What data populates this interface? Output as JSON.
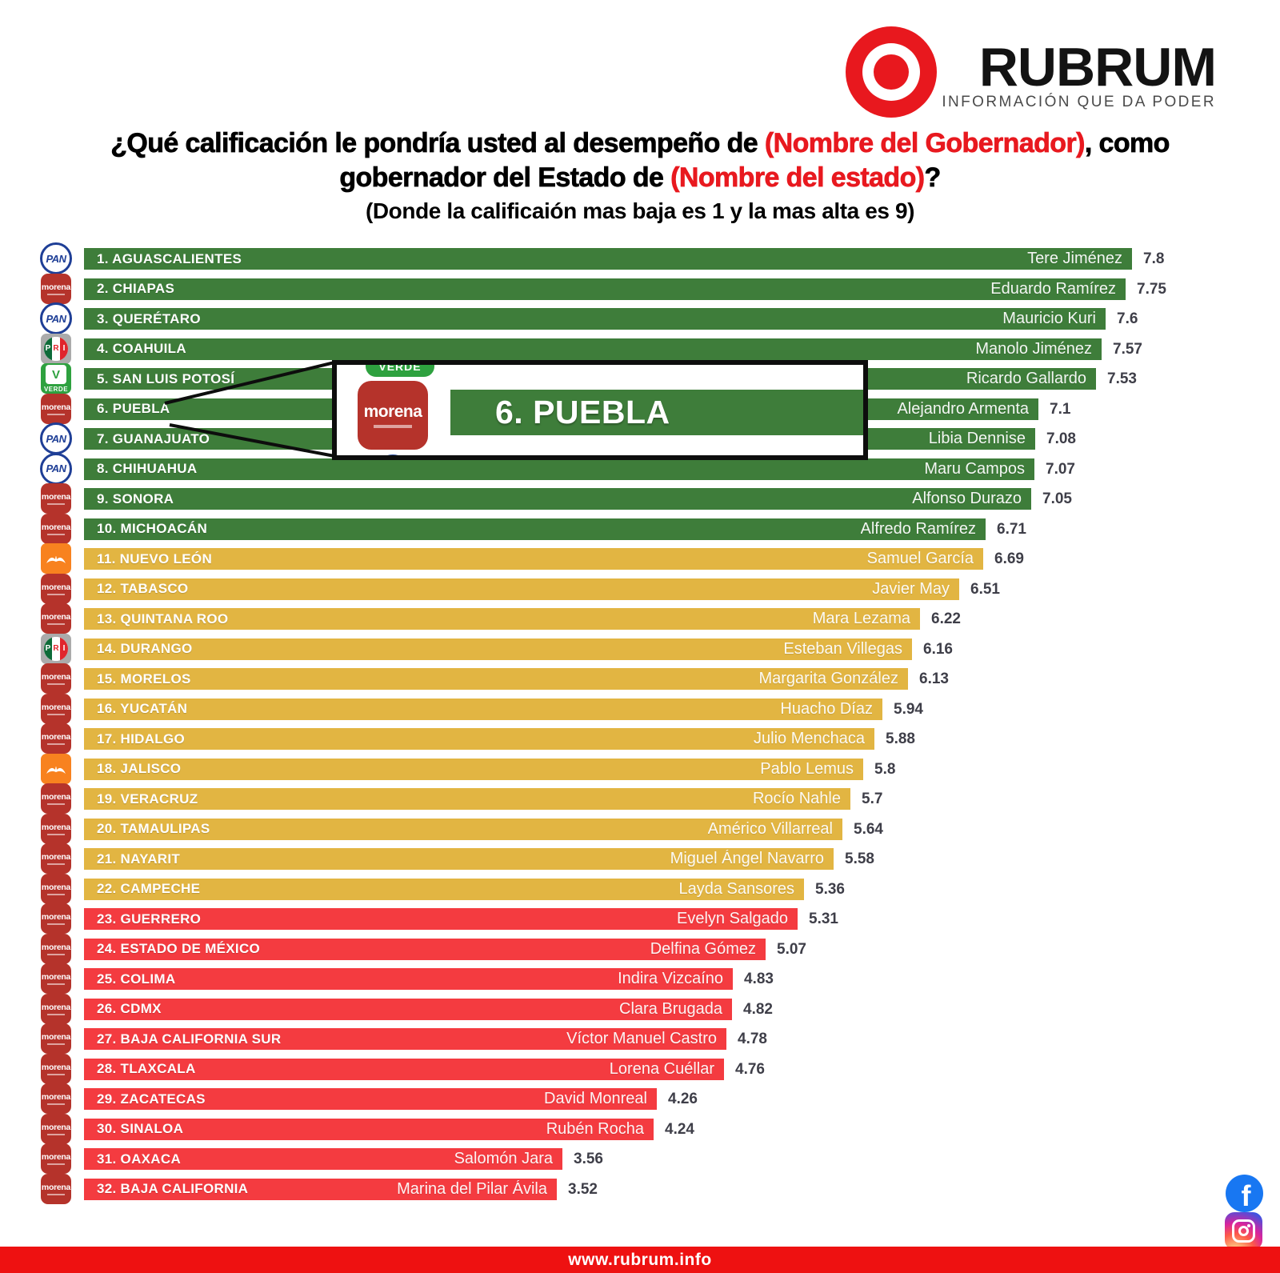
{
  "header": {
    "brand": "RUBRUM",
    "tagline": "INFORMACIÓN QUE DA PODER"
  },
  "title": {
    "line1": [
      {
        "text": "¿Qué calificación le pondría usted al desempeño de ",
        "color": "black"
      },
      {
        "text": "(Nombre del Gobernador)",
        "color": "red"
      },
      {
        "text": ", como",
        "color": "black"
      }
    ],
    "line2": [
      {
        "text": "gobernador del Estado de ",
        "color": "black"
      },
      {
        "text": "(Nombre del estado)",
        "color": "red"
      },
      {
        "text": "?",
        "color": "black"
      }
    ],
    "line3": "(Donde la calificaión mas baja es 1 y la mas alta es 9)"
  },
  "parties": {
    "PAN": "PAN",
    "morena": "morena",
    "PRI": "PRI",
    "VERDE": "VERDE",
    "MC": "MC"
  },
  "colors": {
    "tiers": {
      "green": "#3e7d3a",
      "yellow": "#e2b542",
      "red": "#f43b40"
    },
    "brand_red": "#e8181e",
    "footer_red": "#ee1111",
    "title_red": "#e8191f",
    "score_text": "#3e3e48",
    "party": {
      "PAN": "#1e3e96",
      "morena": "#b5332b",
      "PRI": "#0d6b38",
      "VERDE": "#2ea13f",
      "MC": "#f8821f"
    }
  },
  "inset": {
    "label": "6. PUEBLA",
    "party": "morena"
  },
  "footer": {
    "url": "www.rubrum.info"
  },
  "icons": {
    "facebook": "f"
  },
  "chart_data": {
    "type": "bar",
    "orientation": "horizontal",
    "title": "¿Qué calificación le pondría usted al desempeño de (Nombre del Gobernador), como gobernador del Estado de (Nombre del estado)?",
    "subtitle": "(Donde la calificaión mas baja es 1 y la mas alta es 9)",
    "value_range": [
      1,
      9
    ],
    "legend_position": "none",
    "grid": false,
    "rows": [
      {
        "rank": 1,
        "state": "AGUASCALIENTES",
        "governor": "Tere Jiménez",
        "score": 7.8,
        "party": "PAN",
        "tier": "green"
      },
      {
        "rank": 2,
        "state": "CHIAPAS",
        "governor": "Eduardo Ramírez",
        "score": 7.75,
        "party": "morena",
        "tier": "green"
      },
      {
        "rank": 3,
        "state": "QUERÉTARO",
        "governor": "Mauricio Kuri",
        "score": 7.6,
        "party": "PAN",
        "tier": "green"
      },
      {
        "rank": 4,
        "state": "COAHUILA",
        "governor": "Manolo Jiménez",
        "score": 7.57,
        "party": "PRI",
        "tier": "green"
      },
      {
        "rank": 5,
        "state": "SAN LUIS POTOSÍ",
        "governor": "Ricardo Gallardo",
        "score": 7.53,
        "party": "VERDE",
        "tier": "green"
      },
      {
        "rank": 6,
        "state": "PUEBLA",
        "governor": "Alejandro Armenta",
        "score": 7.1,
        "party": "morena",
        "tier": "green"
      },
      {
        "rank": 7,
        "state": "GUANAJUATO",
        "governor": "Libia Dennise",
        "score": 7.08,
        "party": "PAN",
        "tier": "green"
      },
      {
        "rank": 8,
        "state": "CHIHUAHUA",
        "governor": "Maru Campos",
        "score": 7.07,
        "party": "PAN",
        "tier": "green"
      },
      {
        "rank": 9,
        "state": "SONORA",
        "governor": "Alfonso Durazo",
        "score": 7.05,
        "party": "morena",
        "tier": "green"
      },
      {
        "rank": 10,
        "state": "MICHOACÁN",
        "governor": "Alfredo Ramírez",
        "score": 6.71,
        "party": "morena",
        "tier": "green"
      },
      {
        "rank": 11,
        "state": "NUEVO LEÓN",
        "governor": "Samuel García",
        "score": 6.69,
        "party": "MC",
        "tier": "yellow"
      },
      {
        "rank": 12,
        "state": "TABASCO",
        "governor": "Javier May",
        "score": 6.51,
        "party": "morena",
        "tier": "yellow"
      },
      {
        "rank": 13,
        "state": "QUINTANA ROO",
        "governor": "Mara Lezama",
        "score": 6.22,
        "party": "morena",
        "tier": "yellow"
      },
      {
        "rank": 14,
        "state": "DURANGO",
        "governor": "Esteban Villegas",
        "score": 6.16,
        "party": "PRI",
        "tier": "yellow"
      },
      {
        "rank": 15,
        "state": "MORELOS",
        "governor": "Margarita González",
        "score": 6.13,
        "party": "morena",
        "tier": "yellow"
      },
      {
        "rank": 16,
        "state": "YUCATÁN",
        "governor": "Huacho Díaz",
        "score": 5.94,
        "party": "morena",
        "tier": "yellow"
      },
      {
        "rank": 17,
        "state": "HIDALGO",
        "governor": "Julio Menchaca",
        "score": 5.88,
        "party": "morena",
        "tier": "yellow"
      },
      {
        "rank": 18,
        "state": "JALISCO",
        "governor": "Pablo Lemus",
        "score": 5.8,
        "party": "MC",
        "tier": "yellow"
      },
      {
        "rank": 19,
        "state": "VERACRUZ",
        "governor": "Rocío Nahle",
        "score": 5.7,
        "party": "morena",
        "tier": "yellow"
      },
      {
        "rank": 20,
        "state": "TAMAULIPAS",
        "governor": "Américo Villarreal",
        "score": 5.64,
        "party": "morena",
        "tier": "yellow"
      },
      {
        "rank": 21,
        "state": "NAYARIT",
        "governor": "Miguel Ángel Navarro",
        "score": 5.58,
        "party": "morena",
        "tier": "yellow"
      },
      {
        "rank": 22,
        "state": "CAMPECHE",
        "governor": "Layda Sansores",
        "score": 5.36,
        "party": "morena",
        "tier": "yellow"
      },
      {
        "rank": 23,
        "state": "GUERRERO",
        "governor": "Evelyn Salgado",
        "score": 5.31,
        "party": "morena",
        "tier": "red"
      },
      {
        "rank": 24,
        "state": "ESTADO DE MÉXICO",
        "governor": "Delfina Gómez",
        "score": 5.07,
        "party": "morena",
        "tier": "red"
      },
      {
        "rank": 25,
        "state": "COLIMA",
        "governor": "Indira Vizcaíno",
        "score": 4.83,
        "party": "morena",
        "tier": "red"
      },
      {
        "rank": 26,
        "state": "CDMX",
        "governor": "Clara Brugada",
        "score": 4.82,
        "party": "morena",
        "tier": "red"
      },
      {
        "rank": 27,
        "state": "BAJA CALIFORNIA SUR",
        "governor": "Víctor Manuel Castro",
        "score": 4.78,
        "party": "morena",
        "tier": "red"
      },
      {
        "rank": 28,
        "state": "TLAXCALA",
        "governor": "Lorena Cuéllar",
        "score": 4.76,
        "party": "morena",
        "tier": "red"
      },
      {
        "rank": 29,
        "state": "ZACATECAS",
        "governor": "David Monreal",
        "score": 4.26,
        "party": "morena",
        "tier": "red"
      },
      {
        "rank": 30,
        "state": "SINALOA",
        "governor": "Rubén Rocha",
        "score": 4.24,
        "party": "morena",
        "tier": "red"
      },
      {
        "rank": 31,
        "state": "OAXACA",
        "governor": "Salomón Jara",
        "score": 3.56,
        "party": "morena",
        "tier": "red"
      },
      {
        "rank": 32,
        "state": "BAJA CALIFORNIA",
        "governor": "Marina del Pilar Ávila",
        "score": 3.52,
        "party": "morena",
        "tier": "red"
      }
    ]
  }
}
